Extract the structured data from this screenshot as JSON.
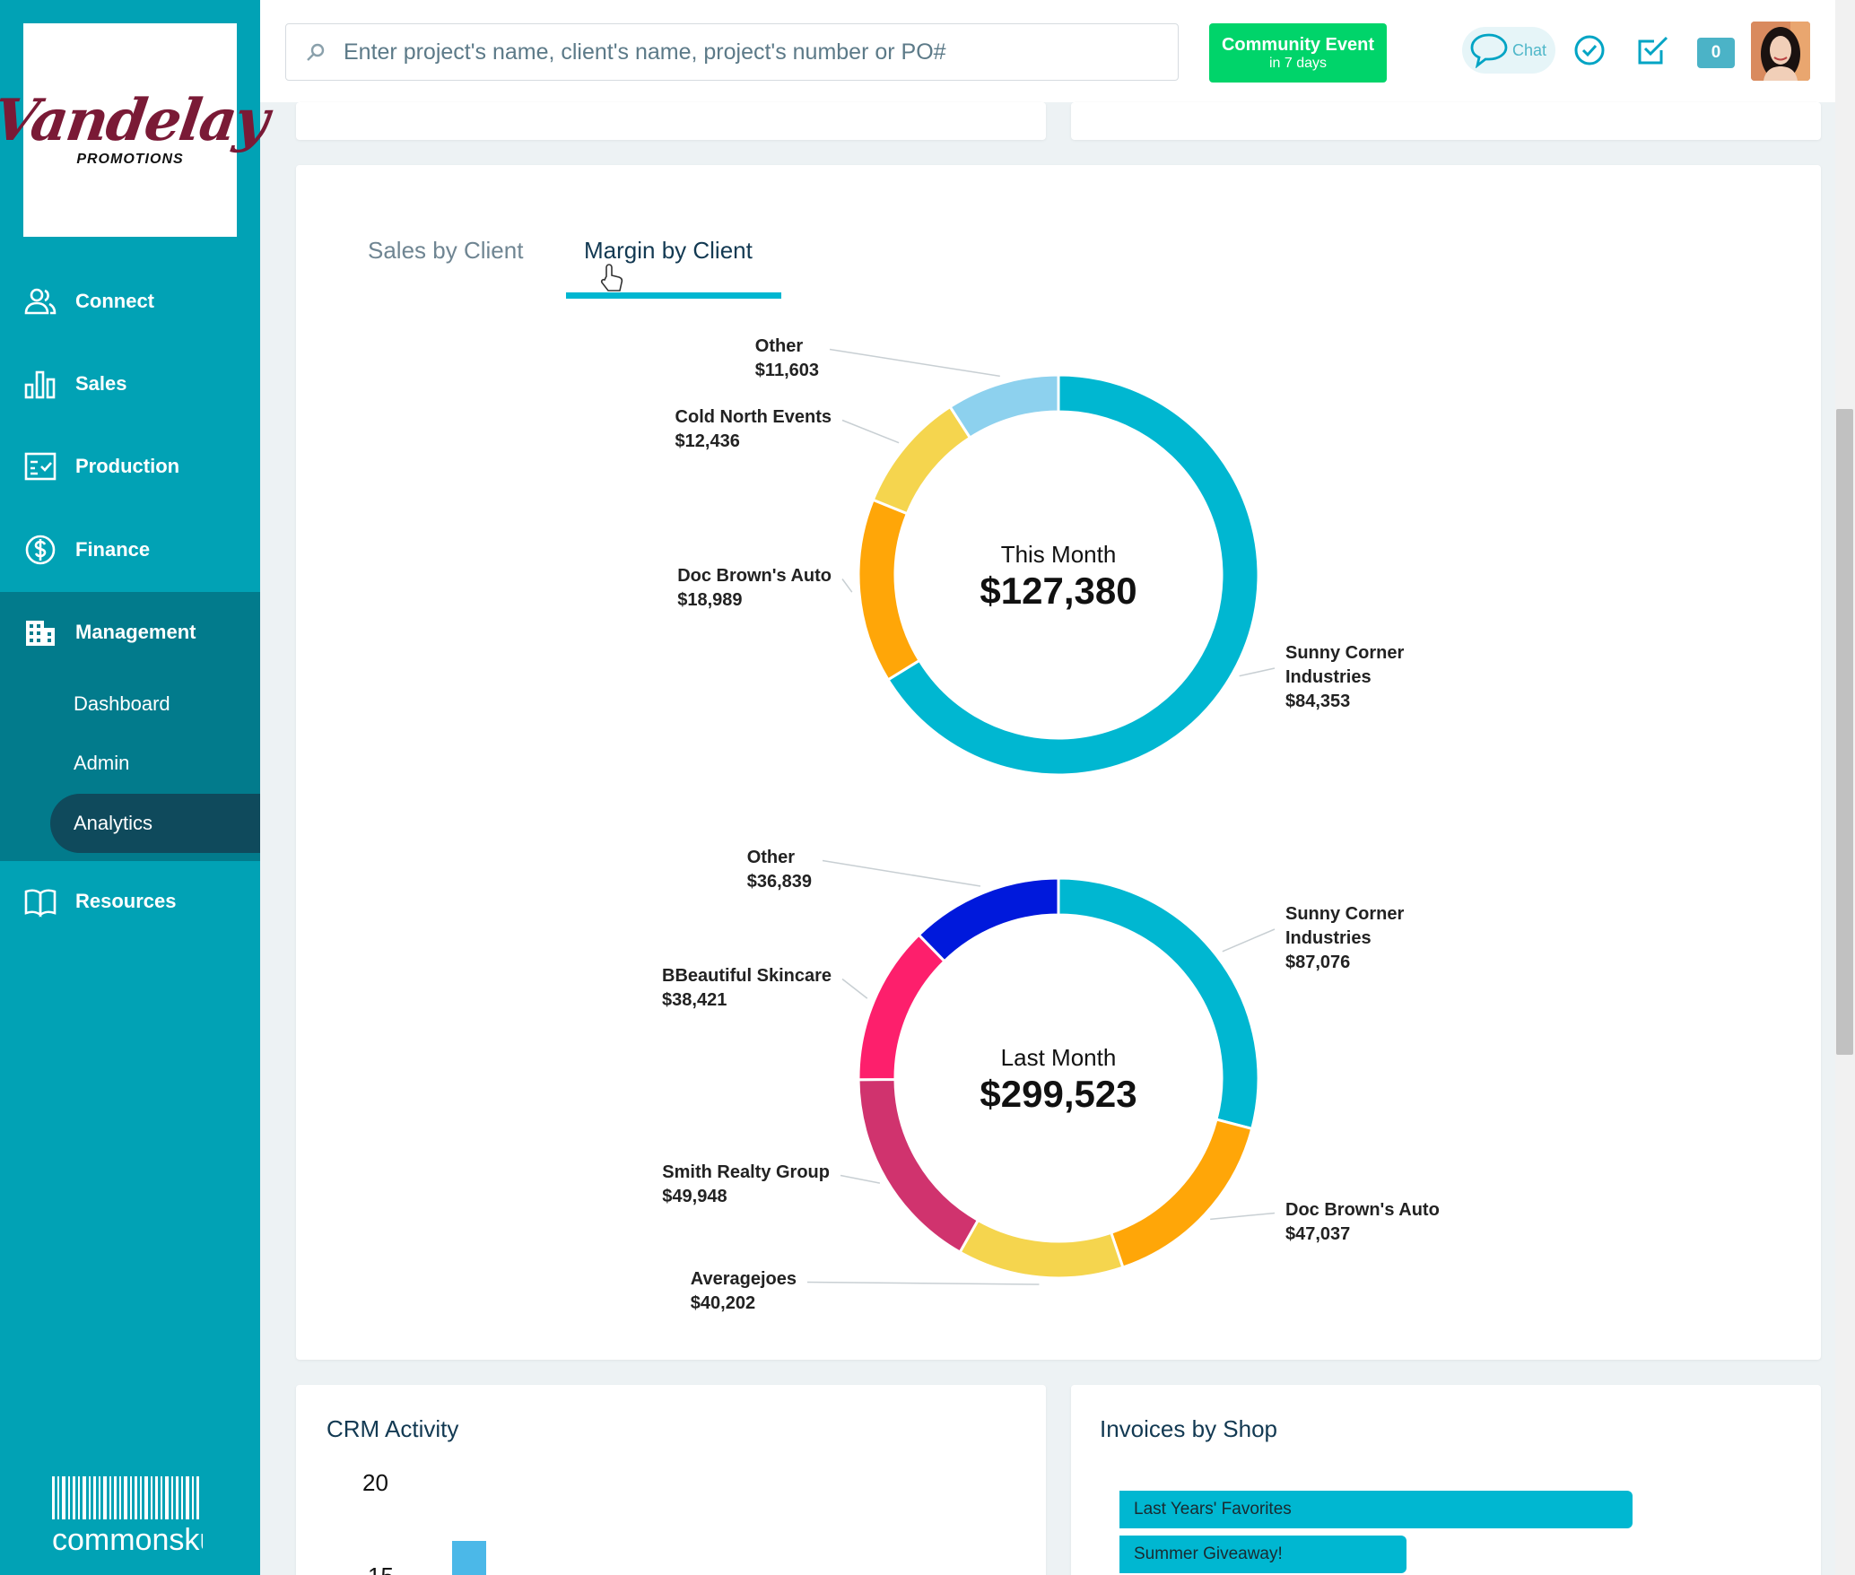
{
  "logo": {
    "script": "Vandelay",
    "sub": "PROMOTIONS"
  },
  "nav": [
    {
      "label": "Connect",
      "icon": "users-icon"
    },
    {
      "label": "Sales",
      "icon": "bar-chart-icon"
    },
    {
      "label": "Production",
      "icon": "checklist-icon"
    },
    {
      "label": "Finance",
      "icon": "dollar-circle-icon"
    },
    {
      "label": "Management",
      "icon": "building-icon"
    },
    {
      "label": "Resources",
      "icon": "book-icon"
    }
  ],
  "management_sub": [
    {
      "label": "Dashboard"
    },
    {
      "label": "Admin"
    },
    {
      "label": "Analytics",
      "active": true
    }
  ],
  "footer_brand": {
    "text": "commonsku"
  },
  "search": {
    "placeholder": "Enter project's name, client's name, project's number or PO#"
  },
  "event": {
    "title": "Community Event",
    "subtitle": "in 7 days"
  },
  "chat": {
    "label": "Chat"
  },
  "notifications": {
    "count": "0"
  },
  "tabs": [
    {
      "label": "Sales by Client",
      "active": false
    },
    {
      "label": "Margin by Client",
      "active": true
    }
  ],
  "colors": {
    "sidebar": "#01a2b5",
    "accent": "#00b7d1",
    "event_green": "#00d46a"
  },
  "chart_data": [
    {
      "type": "pie",
      "center_label": "This Month",
      "center_value": "$127,380",
      "slices": [
        {
          "label": "Sunny Corner Industries",
          "value": 84353,
          "value_label": "$84,353",
          "color": "#00b7d1"
        },
        {
          "label": "Doc Brown's Auto",
          "value": 18989,
          "value_label": "$18,989",
          "color": "#ffa608"
        },
        {
          "label": "Cold North Events",
          "value": 12436,
          "value_label": "$12,436",
          "color": "#f5d54e"
        },
        {
          "label": "Other",
          "value": 11603,
          "value_label": "$11,603",
          "color": "#8dd1ee"
        }
      ]
    },
    {
      "type": "pie",
      "center_label": "Last Month",
      "center_value": "$299,523",
      "slices": [
        {
          "label": "Sunny Corner Industries",
          "value": 87076,
          "value_label": "$87,076",
          "color": "#00b7d1"
        },
        {
          "label": "Doc Brown's Auto",
          "value": 47037,
          "value_label": "$47,037",
          "color": "#ffa608"
        },
        {
          "label": "Averagejoes",
          "value": 40202,
          "value_label": "$40,202",
          "color": "#f5d54e"
        },
        {
          "label": "Smith Realty Group",
          "value": 49948,
          "value_label": "$49,948",
          "color": "#d0336e"
        },
        {
          "label": "BBeautiful Skincare",
          "value": 38421,
          "value_label": "$38,421",
          "color": "#fd1f6c"
        },
        {
          "label": "Other",
          "value": 36839,
          "value_label": "$36,839",
          "color": "#0019dc"
        }
      ]
    },
    {
      "type": "bar",
      "title": "CRM Activity",
      "y_ticks": [
        "20",
        "15"
      ]
    },
    {
      "type": "bar",
      "title": "Invoices by Shop",
      "categories": [
        "Last Years' Favorites",
        "Summer Giveaway!"
      ]
    }
  ]
}
